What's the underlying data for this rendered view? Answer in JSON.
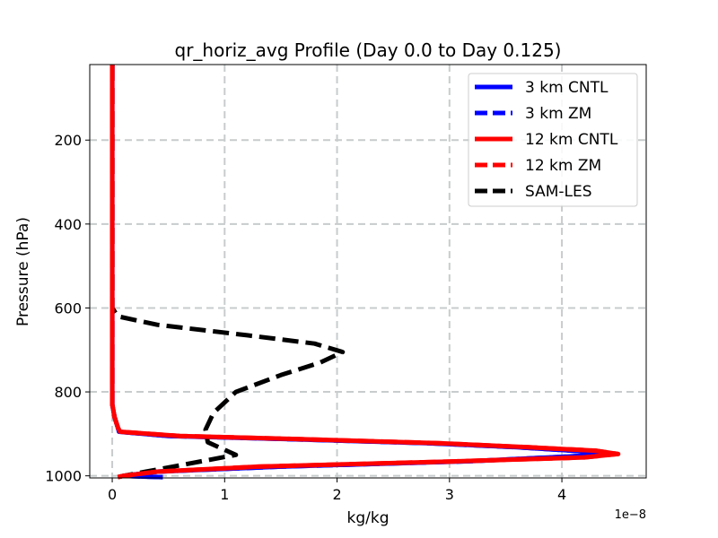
{
  "chart_data": {
    "type": "line",
    "title": "qr_horiz_avg Profile (Day 0.0 to Day 0.125)",
    "xlabel": "kg/kg",
    "ylabel": "Pressure (hPa)",
    "x_offset_label": "1e−8",
    "xlim": [
      -0.2,
      4.75
    ],
    "ylim": [
      1005,
      20
    ],
    "y_inverted": true,
    "xticks": [
      0,
      1,
      2,
      3,
      4
    ],
    "xtick_labels": [
      "0",
      "1",
      "2",
      "3",
      "4"
    ],
    "yticks": [
      200,
      400,
      600,
      800,
      1000
    ],
    "ytick_labels": [
      "200",
      "400",
      "600",
      "800",
      "1000"
    ],
    "grid": true,
    "legend_position": "top-right",
    "series": [
      {
        "name": "3 km CNTL",
        "color": "#0000ff",
        "style": "solid",
        "x": [
          0.0,
          0.0,
          0.0,
          0.02,
          0.05,
          0.06,
          0.5,
          1.5,
          2.8,
          3.6,
          4.2,
          4.35,
          3.2,
          1.5,
          0.4,
          0.1,
          0.3,
          0.45
        ],
        "y": [
          20,
          600,
          830,
          860,
          885,
          895,
          905,
          912,
          922,
          932,
          942,
          950,
          965,
          978,
          990,
          1000,
          1002,
          1003
        ]
      },
      {
        "name": "3 km ZM",
        "color": "#0000ff",
        "style": "dashed",
        "x": [
          0.0,
          0.0,
          0.0,
          0.02,
          0.05,
          0.06,
          0.5,
          1.5,
          2.8,
          3.6,
          4.2,
          4.35,
          3.2,
          1.5,
          0.4,
          0.1,
          0.3,
          0.45
        ],
        "y": [
          20,
          600,
          830,
          860,
          885,
          895,
          905,
          912,
          922,
          932,
          942,
          950,
          965,
          978,
          990,
          1000,
          1002,
          1003
        ]
      },
      {
        "name": "12 km CNTL",
        "color": "#ff0000",
        "style": "solid",
        "x": [
          0.0,
          0.0,
          0.0,
          0.02,
          0.05,
          0.07,
          0.6,
          1.6,
          2.9,
          3.7,
          4.3,
          4.5,
          4.2,
          3.0,
          1.3,
          0.4,
          0.1,
          0.05
        ],
        "y": [
          20,
          600,
          830,
          860,
          885,
          895,
          905,
          912,
          922,
          932,
          940,
          948,
          956,
          966,
          978,
          990,
          1000,
          1003
        ]
      },
      {
        "name": "12 km ZM",
        "color": "#ff0000",
        "style": "dashed",
        "x": [
          0.0,
          0.0,
          0.0,
          0.02,
          0.05,
          0.07,
          0.6,
          1.6,
          2.9,
          3.7,
          4.3,
          4.5,
          4.2,
          3.0,
          1.3,
          0.4,
          0.1,
          0.05
        ],
        "y": [
          20,
          600,
          830,
          860,
          885,
          895,
          905,
          912,
          922,
          932,
          940,
          948,
          956,
          966,
          978,
          990,
          1000,
          1003
        ]
      },
      {
        "name": "SAM-LES",
        "color": "#000000",
        "style": "dashed",
        "x": [
          0.0,
          0.0,
          0.0,
          0.05,
          0.4,
          1.2,
          1.8,
          2.05,
          1.85,
          1.5,
          1.1,
          0.9,
          0.83,
          0.85,
          1.1,
          0.6,
          0.3,
          0.1,
          0.05
        ],
        "y": [
          20,
          550,
          600,
          620,
          640,
          665,
          685,
          705,
          730,
          760,
          800,
          850,
          890,
          920,
          950,
          975,
          990,
          1000,
          1003
        ]
      }
    ]
  }
}
